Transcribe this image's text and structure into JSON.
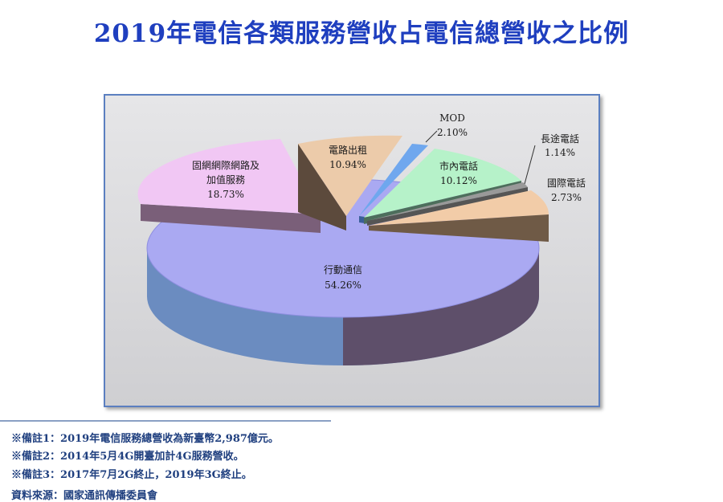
{
  "title": "2019年電信各類服務營收占電信總營收之比例",
  "chart_data": {
    "type": "pie",
    "title": "2019年電信各類服務營收占電信總營收之比例",
    "style": "3d-exploded",
    "slices": [
      {
        "name": "行動通信",
        "value": 54.26,
        "label": "54.26%",
        "color": "#aaa9f2",
        "dark": "#6b8cc0"
      },
      {
        "name": "固網網際網路及加值服務",
        "value": 18.73,
        "label": "18.73%",
        "color": "#f1c7f4",
        "dark": "#8a6a86"
      },
      {
        "name": "電路出租",
        "value": 10.94,
        "label": "10.94%",
        "color": "#eccbaa",
        "dark": "#6e5a48"
      },
      {
        "name": "MOD",
        "value": 2.1,
        "label": "2.10%",
        "color": "#6fa7ee",
        "dark": "#3a5f99"
      },
      {
        "name": "市內電話",
        "value": 10.12,
        "label": "10.12%",
        "color": "#b6f2c9",
        "dark": "#5d8a70"
      },
      {
        "name": "長途電話",
        "value": 1.14,
        "label": "1.14%",
        "color": "#999999",
        "dark": "#555555"
      },
      {
        "name": "國際電話",
        "value": 2.73,
        "label": "2.73%",
        "color": "#f2cca8",
        "dark": "#6f5a46"
      }
    ]
  },
  "notes": [
    "※備註1：2019年電信服務總營收為新臺幣2,987億元。",
    "※備註2：2014年5月4G開臺加計4G服務營收。",
    "※備註3：2017年7月2G終止，2019年3G終止。"
  ],
  "source": "資料來源：國家通訊傳播委員會"
}
